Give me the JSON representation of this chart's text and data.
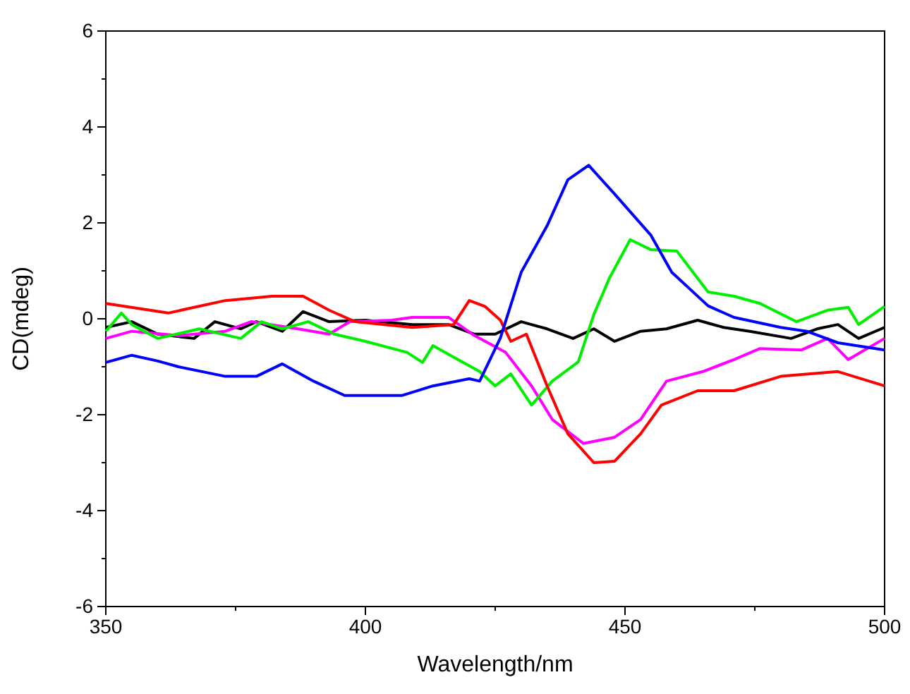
{
  "chart_data": {
    "type": "line",
    "xlabel": "Wavelength/nm",
    "ylabel": "CD(mdeg)",
    "xlim": [
      350,
      500
    ],
    "ylim": [
      -6,
      6
    ],
    "xticks": [
      350,
      {
        "value": 375,
        "label": null
      },
      400,
      {
        "value": 425,
        "label": null
      },
      450,
      {
        "value": 475,
        "label": null
      },
      500
    ],
    "yticks": [
      -6,
      {
        "value": -5,
        "label": null
      },
      -4,
      {
        "value": -3,
        "label": null
      },
      -2,
      {
        "value": -1,
        "label": null
      },
      0,
      {
        "value": 1,
        "label": null
      },
      2,
      {
        "value": 3,
        "label": null
      },
      4,
      {
        "value": 5,
        "label": null
      },
      6
    ],
    "grid": false,
    "marker": "none",
    "line_style": "solid",
    "series": [
      {
        "color": "#000000",
        "x": [
          350,
          355,
          360,
          367,
          371,
          376,
          379,
          384,
          388,
          393,
          400,
          409,
          416,
          421,
          425,
          430,
          435,
          440,
          444,
          448,
          453,
          458,
          464,
          469,
          474,
          482,
          487,
          491,
          495,
          500
        ],
        "values": [
          -0.18,
          -0.06,
          -0.32,
          -0.41,
          -0.06,
          -0.21,
          -0.06,
          -0.26,
          0.15,
          -0.06,
          -0.03,
          -0.12,
          -0.12,
          -0.32,
          -0.32,
          -0.06,
          -0.21,
          -0.41,
          -0.21,
          -0.47,
          -0.26,
          -0.21,
          -0.03,
          -0.18,
          -0.26,
          -0.41,
          -0.21,
          -0.12,
          -0.41,
          -0.18
        ]
      },
      {
        "color": "#ff00ff",
        "x": [
          350,
          355,
          364,
          373,
          378,
          387,
          393,
          397,
          405,
          409,
          416,
          421,
          427,
          432,
          436,
          442,
          448,
          453,
          458,
          465,
          471,
          476,
          484,
          489,
          493,
          500
        ],
        "values": [
          -0.41,
          -0.26,
          -0.35,
          -0.26,
          -0.06,
          -0.21,
          -0.32,
          -0.06,
          -0.03,
          0.03,
          0.03,
          -0.35,
          -0.7,
          -1.4,
          -2.1,
          -2.6,
          -2.47,
          -2.1,
          -1.3,
          -1.1,
          -0.85,
          -0.62,
          -0.65,
          -0.41,
          -0.85,
          -0.41
        ]
      },
      {
        "color": "#00ee00",
        "x": [
          350,
          353,
          355,
          360,
          368,
          376,
          380,
          384,
          389,
          394,
          400,
          408,
          411,
          413,
          417,
          422,
          425,
          428,
          432,
          436,
          441,
          444,
          447,
          451,
          455,
          460,
          466,
          471,
          476,
          483,
          489,
          493,
          495,
          500
        ],
        "values": [
          -0.26,
          0.12,
          -0.12,
          -0.41,
          -0.21,
          -0.41,
          -0.06,
          -0.21,
          -0.06,
          -0.32,
          -0.47,
          -0.7,
          -0.91,
          -0.56,
          -0.8,
          -1.1,
          -1.4,
          -1.15,
          -1.8,
          -1.3,
          -0.9,
          0.09,
          0.85,
          1.65,
          1.44,
          1.41,
          0.56,
          0.47,
          0.32,
          -0.06,
          0.18,
          0.24,
          -0.12,
          0.26
        ]
      },
      {
        "color": "#ff0000",
        "x": [
          350,
          362,
          373,
          382,
          388,
          393,
          398,
          409,
          417,
          420,
          423,
          426,
          428,
          431,
          435,
          439,
          444,
          448,
          453,
          457,
          464,
          471,
          480,
          491,
          500
        ],
        "values": [
          0.32,
          0.12,
          0.38,
          0.47,
          0.47,
          0.18,
          -0.06,
          -0.18,
          -0.12,
          0.38,
          0.26,
          -0.03,
          -0.47,
          -0.32,
          -1.4,
          -2.4,
          -3.0,
          -2.97,
          -2.4,
          -1.8,
          -1.5,
          -1.5,
          -1.2,
          -1.1,
          -1.4
        ]
      },
      {
        "color": "#0000ff",
        "x": [
          350,
          355,
          360,
          364,
          373,
          379,
          384,
          390,
          396,
          401,
          407,
          413,
          420,
          422,
          426,
          430,
          435,
          439,
          443,
          448,
          455,
          459,
          466,
          471,
          480,
          485,
          491,
          500
        ],
        "values": [
          -0.91,
          -0.76,
          -0.88,
          -1.0,
          -1.2,
          -1.2,
          -0.94,
          -1.3,
          -1.6,
          -1.6,
          -1.6,
          -1.4,
          -1.25,
          -1.3,
          -0.4,
          0.97,
          1.94,
          2.9,
          3.2,
          2.6,
          1.74,
          0.97,
          0.27,
          0.03,
          -0.18,
          -0.26,
          -0.5,
          -0.65
        ]
      }
    ]
  }
}
